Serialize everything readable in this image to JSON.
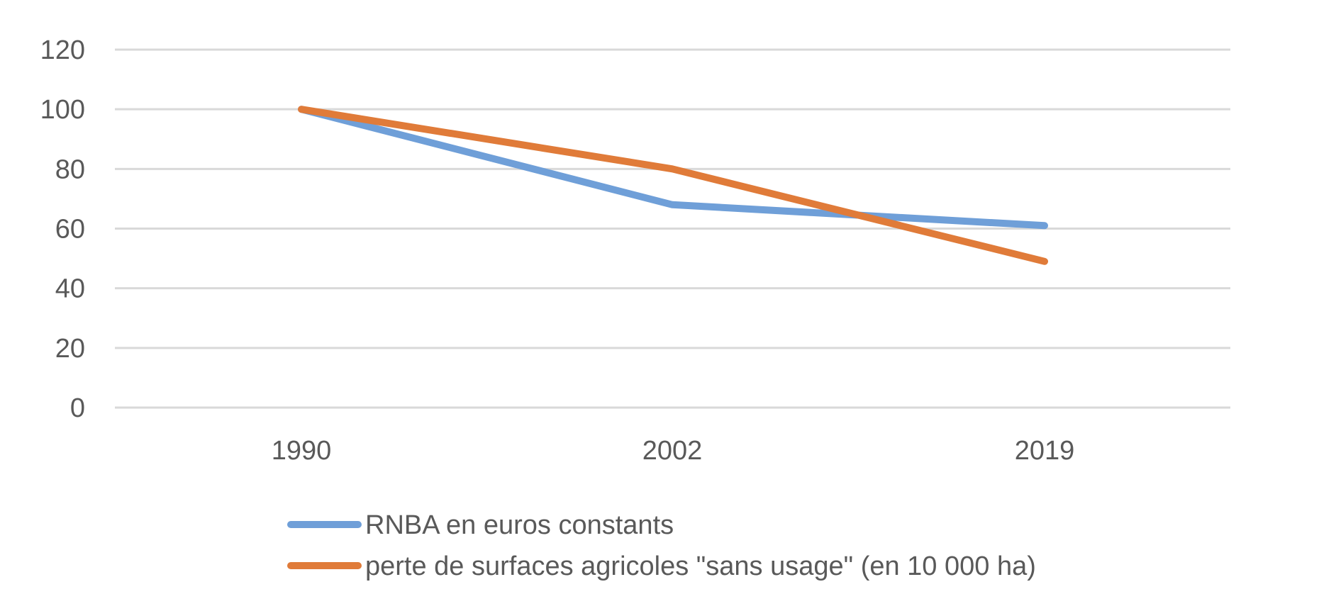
{
  "chart_data": {
    "type": "line",
    "title": "",
    "xlabel": "",
    "ylabel": "",
    "categories": [
      "1990",
      "2002",
      "2019"
    ],
    "ylim": [
      0,
      120
    ],
    "yticks": [
      0,
      20,
      40,
      60,
      80,
      100,
      120
    ],
    "grid": true,
    "legend_position": "bottom",
    "series": [
      {
        "name": "RNBA en euros constants",
        "color": "#6f9fd8",
        "values": [
          100,
          68,
          61
        ]
      },
      {
        "name": "perte de surfaces agricoles \"sans usage\" (en 10 000 ha)",
        "color": "#e07b39",
        "values": [
          100,
          80,
          49
        ]
      }
    ]
  }
}
